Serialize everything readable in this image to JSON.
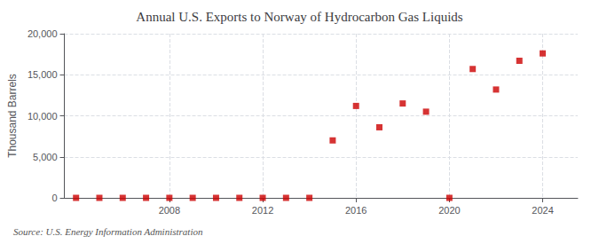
{
  "chart_data": {
    "type": "scatter",
    "title": "Annual U.S. Exports to Norway of Hydrocarbon Gas Liquids",
    "ylabel": "Thousand Barrels",
    "source": "Source: U.S. Energy Information Administration",
    "x": [
      2004,
      2005,
      2006,
      2007,
      2008,
      2009,
      2010,
      2011,
      2012,
      2013,
      2014,
      2015,
      2016,
      2017,
      2018,
      2019,
      2020,
      2021,
      2022,
      2023,
      2024
    ],
    "values": [
      0,
      0,
      0,
      0,
      0,
      0,
      0,
      0,
      0,
      0,
      0,
      7000,
      11200,
      8600,
      11500,
      10500,
      0,
      15700,
      13200,
      16700,
      17600
    ],
    "color": "#cc0000",
    "marker": "square",
    "xlim": [
      2003.5,
      2025.5
    ],
    "xticks": [
      2008,
      2012,
      2016,
      2020,
      2024
    ],
    "ylim": [
      0,
      20000
    ],
    "yticks": [
      {
        "value": 0,
        "label": "0"
      },
      {
        "value": 5000,
        "label": "5,000"
      },
      {
        "value": 10000,
        "label": "10,000"
      },
      {
        "value": 15000,
        "label": "15,000"
      },
      {
        "value": 20000,
        "label": "20,000"
      }
    ],
    "grid": true
  }
}
